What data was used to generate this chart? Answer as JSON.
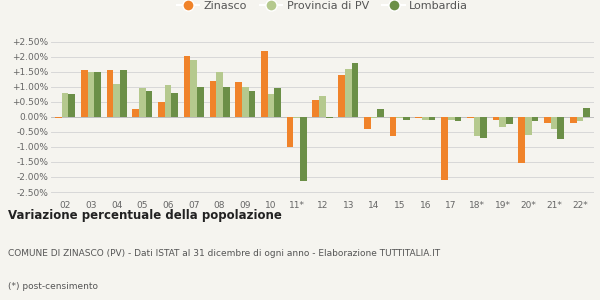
{
  "years": [
    "02",
    "03",
    "04",
    "05",
    "06",
    "07",
    "08",
    "09",
    "10",
    "11*",
    "12",
    "13",
    "14",
    "15",
    "16",
    "17",
    "18*",
    "19*",
    "20*",
    "21*",
    "22*"
  ],
  "zinasco": [
    -0.05,
    1.55,
    1.55,
    0.25,
    0.5,
    2.02,
    1.2,
    1.15,
    2.2,
    -1.0,
    0.55,
    1.4,
    -0.4,
    -0.65,
    -0.05,
    -2.1,
    -0.05,
    -0.1,
    -1.55,
    -0.2,
    -0.2
  ],
  "provincia": [
    0.8,
    1.5,
    1.1,
    0.95,
    1.05,
    1.9,
    1.5,
    1.0,
    0.75,
    -0.05,
    0.7,
    1.6,
    -0.05,
    -0.05,
    -0.1,
    -0.1,
    -0.65,
    -0.35,
    -0.6,
    -0.4,
    -0.15
  ],
  "lombardia": [
    0.75,
    1.5,
    1.55,
    0.85,
    0.8,
    1.0,
    1.0,
    0.85,
    0.95,
    -2.15,
    -0.05,
    1.8,
    0.25,
    -0.1,
    -0.1,
    -0.15,
    -0.7,
    -0.25,
    -0.15,
    -0.75,
    0.3
  ],
  "zinasco_color": "#f0832a",
  "provincia_color": "#b5c98e",
  "lombardia_color": "#6b8f47",
  "bg_color": "#f5f4ef",
  "grid_color": "#d8d8d8",
  "title": "Variazione percentuale della popolazione",
  "subtitle": "COMUNE DI ZINASCO (PV) - Dati ISTAT al 31 dicembre di ogni anno - Elaborazione TUTTITALIA.IT",
  "footnote": "(*) post-censimento",
  "legend_labels": [
    "Zinasco",
    "Provincia di PV",
    "Lombardia"
  ],
  "yticks": [
    -0.025,
    -0.02,
    -0.015,
    -0.01,
    -0.005,
    0.0,
    0.005,
    0.01,
    0.015,
    0.02,
    0.025
  ],
  "ylim": [
    -0.027,
    0.027
  ]
}
